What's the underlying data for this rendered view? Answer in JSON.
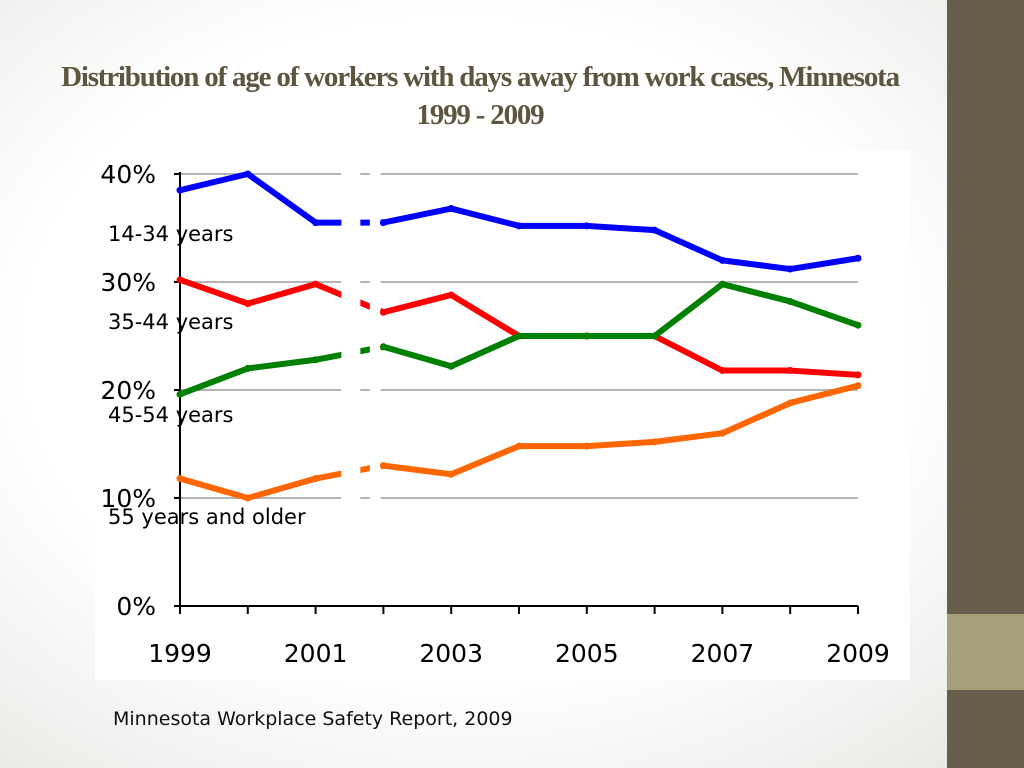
{
  "slide": {
    "title": "Distribution of age of workers with days away from work cases, Minnesota 1999 - 2009",
    "source": "Minnesota Workplace Safety Report, 2009",
    "colors": {
      "side_bar": "#675f4b",
      "side_accent": "#a7a07b",
      "title": "#5d553f"
    }
  },
  "chart_data": {
    "type": "line",
    "title": "Distribution of age of workers with days away from work cases, Minnesota 1999 - 2009",
    "x": [
      1999,
      2000,
      2001,
      2002,
      2003,
      2004,
      2005,
      2006,
      2007,
      2008,
      2009
    ],
    "x_tick_labels": [
      "1999",
      "2001",
      "2003",
      "2005",
      "2007",
      "2009"
    ],
    "y_tick_labels": [
      "0%",
      "10%",
      "20%",
      "30%",
      "40%"
    ],
    "ylim": [
      0,
      40
    ],
    "y_unit": "%",
    "grid": true,
    "legend": "inline labels",
    "series": [
      {
        "name": "14-34 years",
        "color": "#0000ff",
        "values": [
          38.5,
          40.0,
          35.5,
          35.5,
          36.8,
          35.2,
          35.2,
          34.8,
          32.0,
          31.2,
          32.2
        ]
      },
      {
        "name": "35-44 years",
        "color": "#ff0000",
        "values": [
          30.2,
          28.0,
          29.8,
          27.2,
          28.8,
          25.0,
          25.0,
          25.0,
          21.8,
          21.8,
          21.4
        ]
      },
      {
        "name": "45-54 years",
        "color": "#008000",
        "values": [
          19.6,
          22.0,
          22.8,
          24.0,
          22.2,
          25.0,
          25.0,
          25.0,
          29.8,
          28.2,
          26.0
        ]
      },
      {
        "name": "55 years and older",
        "color": "#ff6600",
        "values": [
          11.8,
          10.0,
          11.8,
          13.0,
          12.2,
          14.8,
          14.8,
          15.2,
          16.0,
          18.8,
          20.4
        ]
      }
    ]
  }
}
